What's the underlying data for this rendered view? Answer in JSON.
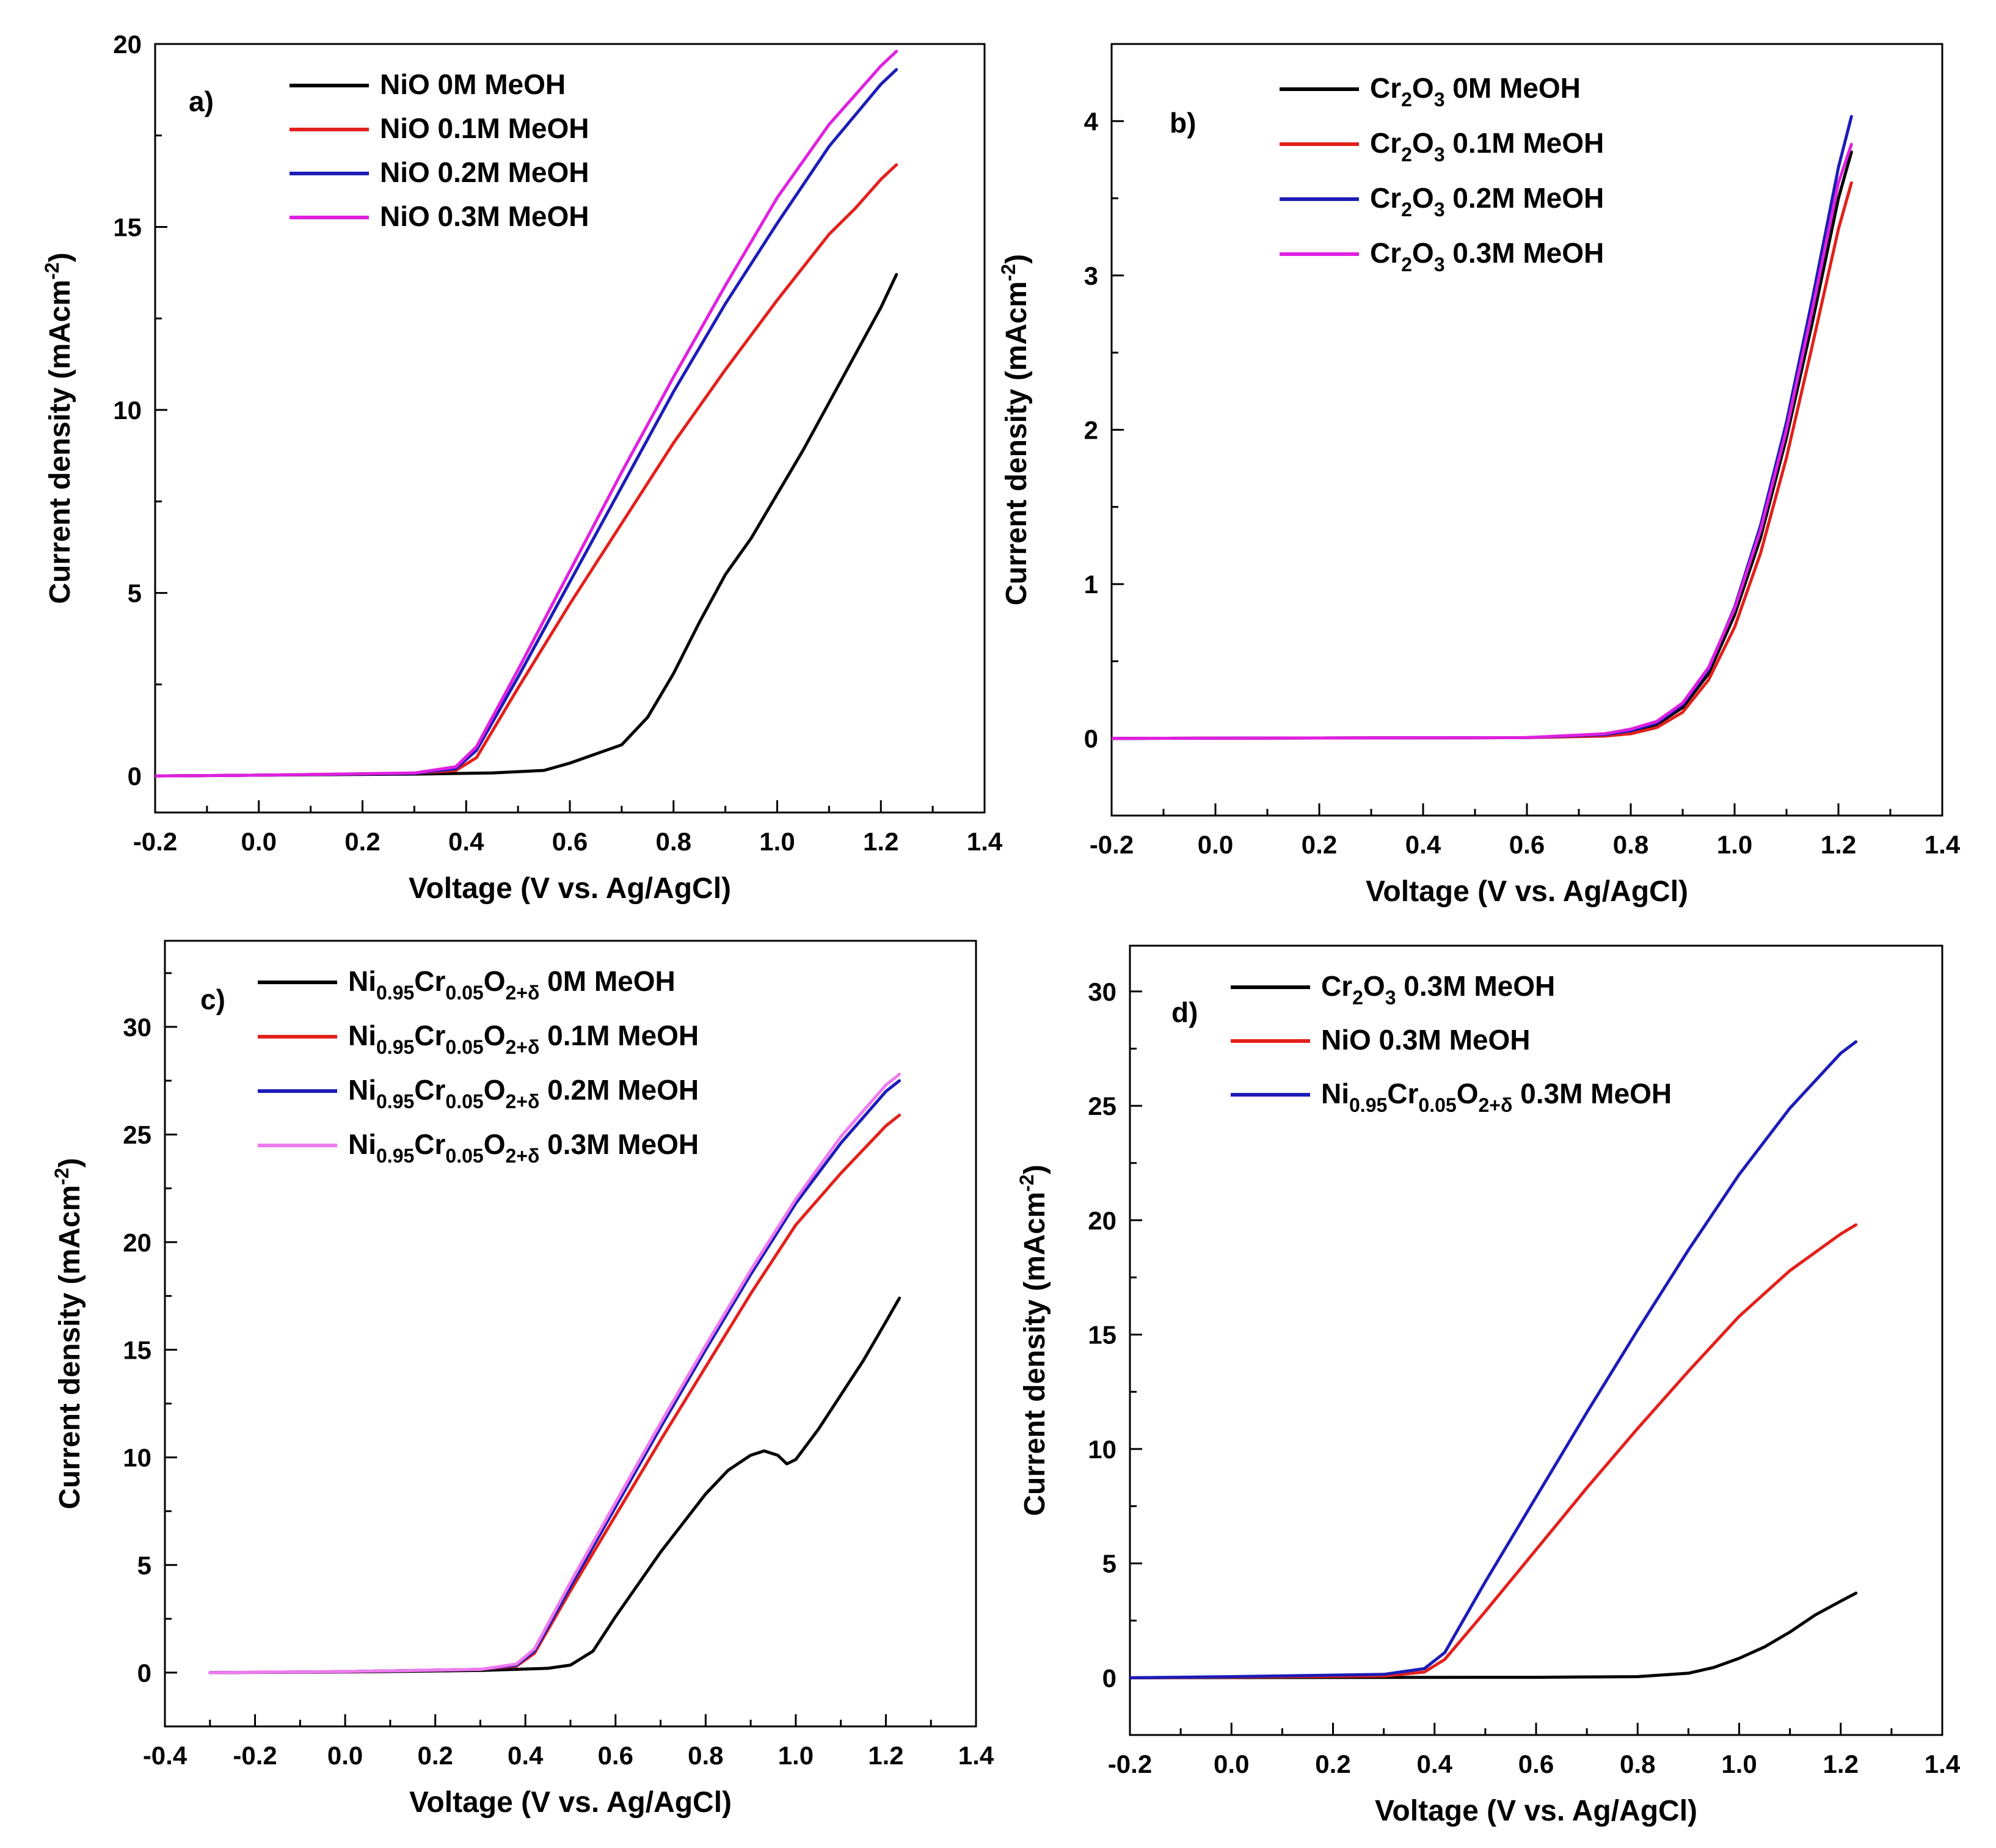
{
  "chart_data": [
    {
      "id": "a",
      "type": "line",
      "panel_label": "a)",
      "xlabel": "Voltage (V vs. Ag/AgCl)",
      "ylabel_main": "Current density (mAcm",
      "ylabel_sup": "-2",
      "ylabel_close": ")",
      "xlim": [
        -0.2,
        1.4
      ],
      "ylim": [
        -1,
        20
      ],
      "xticks": [
        "-0.2",
        "0.0",
        "0.2",
        "0.4",
        "0.6",
        "0.8",
        "1.0",
        "1.2",
        "1.4"
      ],
      "yticks": [
        "0",
        "5",
        "10",
        "15",
        "20"
      ],
      "legend_position": "top-left",
      "series": [
        {
          "name": "NiO 0M MeOH",
          "color": "#000000",
          "x": [
            -0.2,
            0.0,
            0.3,
            0.45,
            0.55,
            0.6,
            0.65,
            0.7,
            0.75,
            0.8,
            0.85,
            0.9,
            0.95,
            1.0,
            1.05,
            1.1,
            1.15,
            1.2,
            1.23
          ],
          "y": [
            0,
            0.02,
            0.05,
            0.08,
            0.15,
            0.35,
            0.6,
            0.85,
            1.6,
            2.8,
            4.2,
            5.5,
            6.5,
            7.7,
            8.9,
            10.2,
            11.5,
            12.8,
            13.7
          ]
        },
        {
          "name": "NiO 0.1M  MeOH",
          "color": "#e3201b",
          "x": [
            -0.2,
            0.0,
            0.3,
            0.38,
            0.42,
            0.5,
            0.6,
            0.7,
            0.8,
            0.9,
            1.0,
            1.05,
            1.1,
            1.15,
            1.2,
            1.23
          ],
          "y": [
            0,
            0.02,
            0.07,
            0.15,
            0.5,
            2.4,
            4.7,
            6.9,
            9.1,
            11.1,
            13.0,
            13.9,
            14.8,
            15.5,
            16.3,
            16.7
          ]
        },
        {
          "name": "NiO 0.2M  MeOH",
          "color": "#1c1cb8",
          "x": [
            -0.2,
            0.0,
            0.3,
            0.38,
            0.42,
            0.5,
            0.6,
            0.7,
            0.8,
            0.9,
            1.0,
            1.1,
            1.2,
            1.23
          ],
          "y": [
            0,
            0.02,
            0.07,
            0.2,
            0.7,
            2.7,
            5.3,
            7.9,
            10.5,
            12.9,
            15.1,
            17.2,
            18.9,
            19.3
          ]
        },
        {
          "name": "NiO 0.3M  MeOH",
          "color": "#e020e0",
          "x": [
            -0.2,
            0.0,
            0.3,
            0.38,
            0.42,
            0.5,
            0.6,
            0.7,
            0.8,
            0.9,
            1.0,
            1.1,
            1.2,
            1.23
          ],
          "y": [
            0,
            0.02,
            0.08,
            0.25,
            0.8,
            2.9,
            5.6,
            8.3,
            10.9,
            13.4,
            15.8,
            17.8,
            19.4,
            19.8
          ]
        }
      ]
    },
    {
      "id": "b",
      "type": "line",
      "panel_label": "b)",
      "xlabel": "Voltage (V vs. Ag/AgCl)",
      "ylabel_main": "Current density (mAcm",
      "ylabel_sup": "-2",
      "ylabel_close": ")",
      "xlim": [
        -0.2,
        1.4
      ],
      "ylim": [
        -0.5,
        4.5
      ],
      "xticks": [
        "-0.2",
        "0.0",
        "0.2",
        "0.4",
        "0.6",
        "0.8",
        "1.0",
        "1.2",
        "1.4"
      ],
      "yticks": [
        "0",
        "1",
        "2",
        "3",
        "4"
      ],
      "legend_position": "top-left",
      "series": [
        {
          "name": "Cr2O3 0M MeOH",
          "color": "#000000",
          "x": [
            -0.2,
            0.6,
            0.75,
            0.8,
            0.85,
            0.9,
            0.95,
            1.0,
            1.05,
            1.1,
            1.15,
            1.2,
            1.225
          ],
          "y": [
            0,
            0.005,
            0.02,
            0.04,
            0.09,
            0.2,
            0.42,
            0.8,
            1.3,
            1.95,
            2.7,
            3.5,
            3.8
          ]
        },
        {
          "name": "Cr2O3 0.1M MeOH",
          "color": "#e3201b",
          "x": [
            -0.2,
            0.6,
            0.75,
            0.8,
            0.85,
            0.9,
            0.95,
            1.0,
            1.05,
            1.1,
            1.15,
            1.2,
            1.225
          ],
          "y": [
            0,
            0.005,
            0.015,
            0.03,
            0.07,
            0.17,
            0.38,
            0.72,
            1.2,
            1.82,
            2.55,
            3.3,
            3.6
          ]
        },
        {
          "name": "Cr2O3 0.2M MeOH",
          "color": "#1c1cb8",
          "x": [
            -0.2,
            0.6,
            0.75,
            0.8,
            0.85,
            0.9,
            0.95,
            1.0,
            1.05,
            1.1,
            1.15,
            1.2,
            1.225
          ],
          "y": [
            0,
            0.005,
            0.025,
            0.05,
            0.1,
            0.22,
            0.45,
            0.85,
            1.38,
            2.05,
            2.85,
            3.7,
            4.03
          ]
        },
        {
          "name": "Cr2O3 0.3M MeOH",
          "color": "#e020e0",
          "x": [
            -0.2,
            0.6,
            0.75,
            0.8,
            0.85,
            0.9,
            0.95,
            1.0,
            1.05,
            1.1,
            1.15,
            1.2,
            1.225
          ],
          "y": [
            0,
            0.005,
            0.03,
            0.06,
            0.11,
            0.23,
            0.46,
            0.84,
            1.35,
            2.0,
            2.78,
            3.6,
            3.85
          ]
        }
      ],
      "legend_base": "Cr",
      "legend_sub": "2",
      "legend_mid": "O",
      "legend_sub2": "3",
      "legend_suffixes": [
        " 0M MeOH",
        " 0.1M MeOH",
        " 0.2M MeOH",
        " 0.3M MeOH"
      ]
    },
    {
      "id": "c",
      "type": "line",
      "panel_label": "c)",
      "xlabel": "Voltage (V vs. Ag/AgCl)",
      "ylabel_main": "Current density (mAcm",
      "ylabel_sup": "-2",
      "ylabel_close": ")",
      "xlim": [
        -0.4,
        1.4
      ],
      "ylim": [
        -2.5,
        34
      ],
      "xticks": [
        "-0.4",
        "-0.2",
        "0.0",
        "0.2",
        "0.4",
        "0.6",
        "0.8",
        "1.0",
        "1.2",
        "1.4"
      ],
      "yticks": [
        "0",
        "5",
        "10",
        "15",
        "20",
        "25",
        "30"
      ],
      "legend_position": "top-left",
      "series": [
        {
          "name": "Ni0.95Cr0.05O2+δ 0M MeOH",
          "color": "#000000",
          "x": [
            -0.3,
            0.0,
            0.3,
            0.45,
            0.5,
            0.55,
            0.6,
            0.7,
            0.8,
            0.85,
            0.9,
            0.93,
            0.96,
            0.98,
            1.0,
            1.05,
            1.1,
            1.15,
            1.2,
            1.23
          ],
          "y": [
            0,
            0.03,
            0.1,
            0.2,
            0.35,
            1.0,
            2.6,
            5.6,
            8.3,
            9.4,
            10.1,
            10.3,
            10.1,
            9.7,
            9.9,
            11.3,
            12.9,
            14.5,
            16.3,
            17.4
          ]
        },
        {
          "name": "Ni0.95Cr0.05O2+δ 0.1M MeOH",
          "color": "#e3201b",
          "x": [
            -0.3,
            0.0,
            0.3,
            0.38,
            0.42,
            0.5,
            0.6,
            0.7,
            0.8,
            0.9,
            1.0,
            1.1,
            1.2,
            1.23
          ],
          "y": [
            0,
            0.05,
            0.15,
            0.3,
            0.9,
            3.8,
            7.3,
            10.8,
            14.2,
            17.6,
            20.8,
            23.2,
            25.4,
            25.9
          ]
        },
        {
          "name": "Ni0.95Cr0.05O2+δ 0.2M MeOH",
          "color": "#1c1cb8",
          "x": [
            -0.3,
            0.0,
            0.3,
            0.38,
            0.42,
            0.5,
            0.6,
            0.7,
            0.8,
            0.9,
            1.0,
            1.1,
            1.2,
            1.23
          ],
          "y": [
            0,
            0.05,
            0.15,
            0.35,
            1.0,
            4.0,
            7.7,
            11.4,
            15.0,
            18.5,
            21.8,
            24.6,
            27.0,
            27.5
          ]
        },
        {
          "name": "Ni0.95Cr0.05O2+δ 0.3M MeOH",
          "color": "#f07af0",
          "x": [
            -0.3,
            0.0,
            0.3,
            0.38,
            0.42,
            0.5,
            0.6,
            0.7,
            0.8,
            0.9,
            1.0,
            1.1,
            1.2,
            1.23
          ],
          "y": [
            0,
            0.05,
            0.15,
            0.4,
            1.1,
            4.2,
            7.9,
            11.6,
            15.2,
            18.7,
            22.0,
            24.9,
            27.3,
            27.8
          ]
        }
      ],
      "legend_base": "Ni",
      "legend_sub": "0.95",
      "legend_mid": "Cr",
      "legend_sub2": "0.05",
      "legend_mid2": "O",
      "legend_sub3": "2+δ",
      "legend_suffixes": [
        " 0M MeOH",
        "  0.1M MeOH",
        "  0.2M MeOH",
        "  0.3M MeOH"
      ]
    },
    {
      "id": "d",
      "type": "line",
      "panel_label": "d)",
      "xlabel": "Voltage (V vs. Ag/AgCl)",
      "ylabel_main": "Current density (mAcm",
      "ylabel_sup": "-2",
      "ylabel_close": ")",
      "xlim": [
        -0.2,
        1.4
      ],
      "ylim": [
        -2.5,
        32
      ],
      "xticks": [
        "-0.2",
        "0.0",
        "0.2",
        "0.4",
        "0.6",
        "0.8",
        "1.0",
        "1.2",
        "1.4"
      ],
      "yticks": [
        "0",
        "5",
        "10",
        "15",
        "20",
        "25",
        "30"
      ],
      "legend_position": "top-left",
      "series": [
        {
          "name": "Cr2O3  0.3M MeOH",
          "color": "#000000",
          "x": [
            -0.2,
            0.0,
            0.6,
            0.8,
            0.9,
            0.95,
            1.0,
            1.05,
            1.1,
            1.15,
            1.2,
            1.23
          ],
          "y": [
            0,
            0.01,
            0.02,
            0.05,
            0.2,
            0.45,
            0.85,
            1.35,
            2.0,
            2.75,
            3.35,
            3.7
          ]
        },
        {
          "name": "NiO    0.3M MeOH",
          "color": "#e3201b",
          "x": [
            -0.2,
            0.0,
            0.3,
            0.38,
            0.42,
            0.5,
            0.6,
            0.7,
            0.8,
            0.9,
            1.0,
            1.1,
            1.2,
            1.23
          ],
          "y": [
            0,
            0.03,
            0.08,
            0.25,
            0.8,
            2.9,
            5.6,
            8.3,
            10.9,
            13.4,
            15.8,
            17.8,
            19.4,
            19.8
          ]
        },
        {
          "name": "Ni0.95Cr0.05O2+δ  0.3M MeOH",
          "color": "#1c1cb8",
          "x": [
            -0.2,
            0.0,
            0.3,
            0.38,
            0.42,
            0.5,
            0.6,
            0.7,
            0.8,
            0.9,
            1.0,
            1.1,
            1.2,
            1.23
          ],
          "y": [
            0,
            0.05,
            0.15,
            0.4,
            1.1,
            4.2,
            7.9,
            11.6,
            15.2,
            18.7,
            22.0,
            24.9,
            27.3,
            27.8
          ]
        }
      ]
    }
  ]
}
